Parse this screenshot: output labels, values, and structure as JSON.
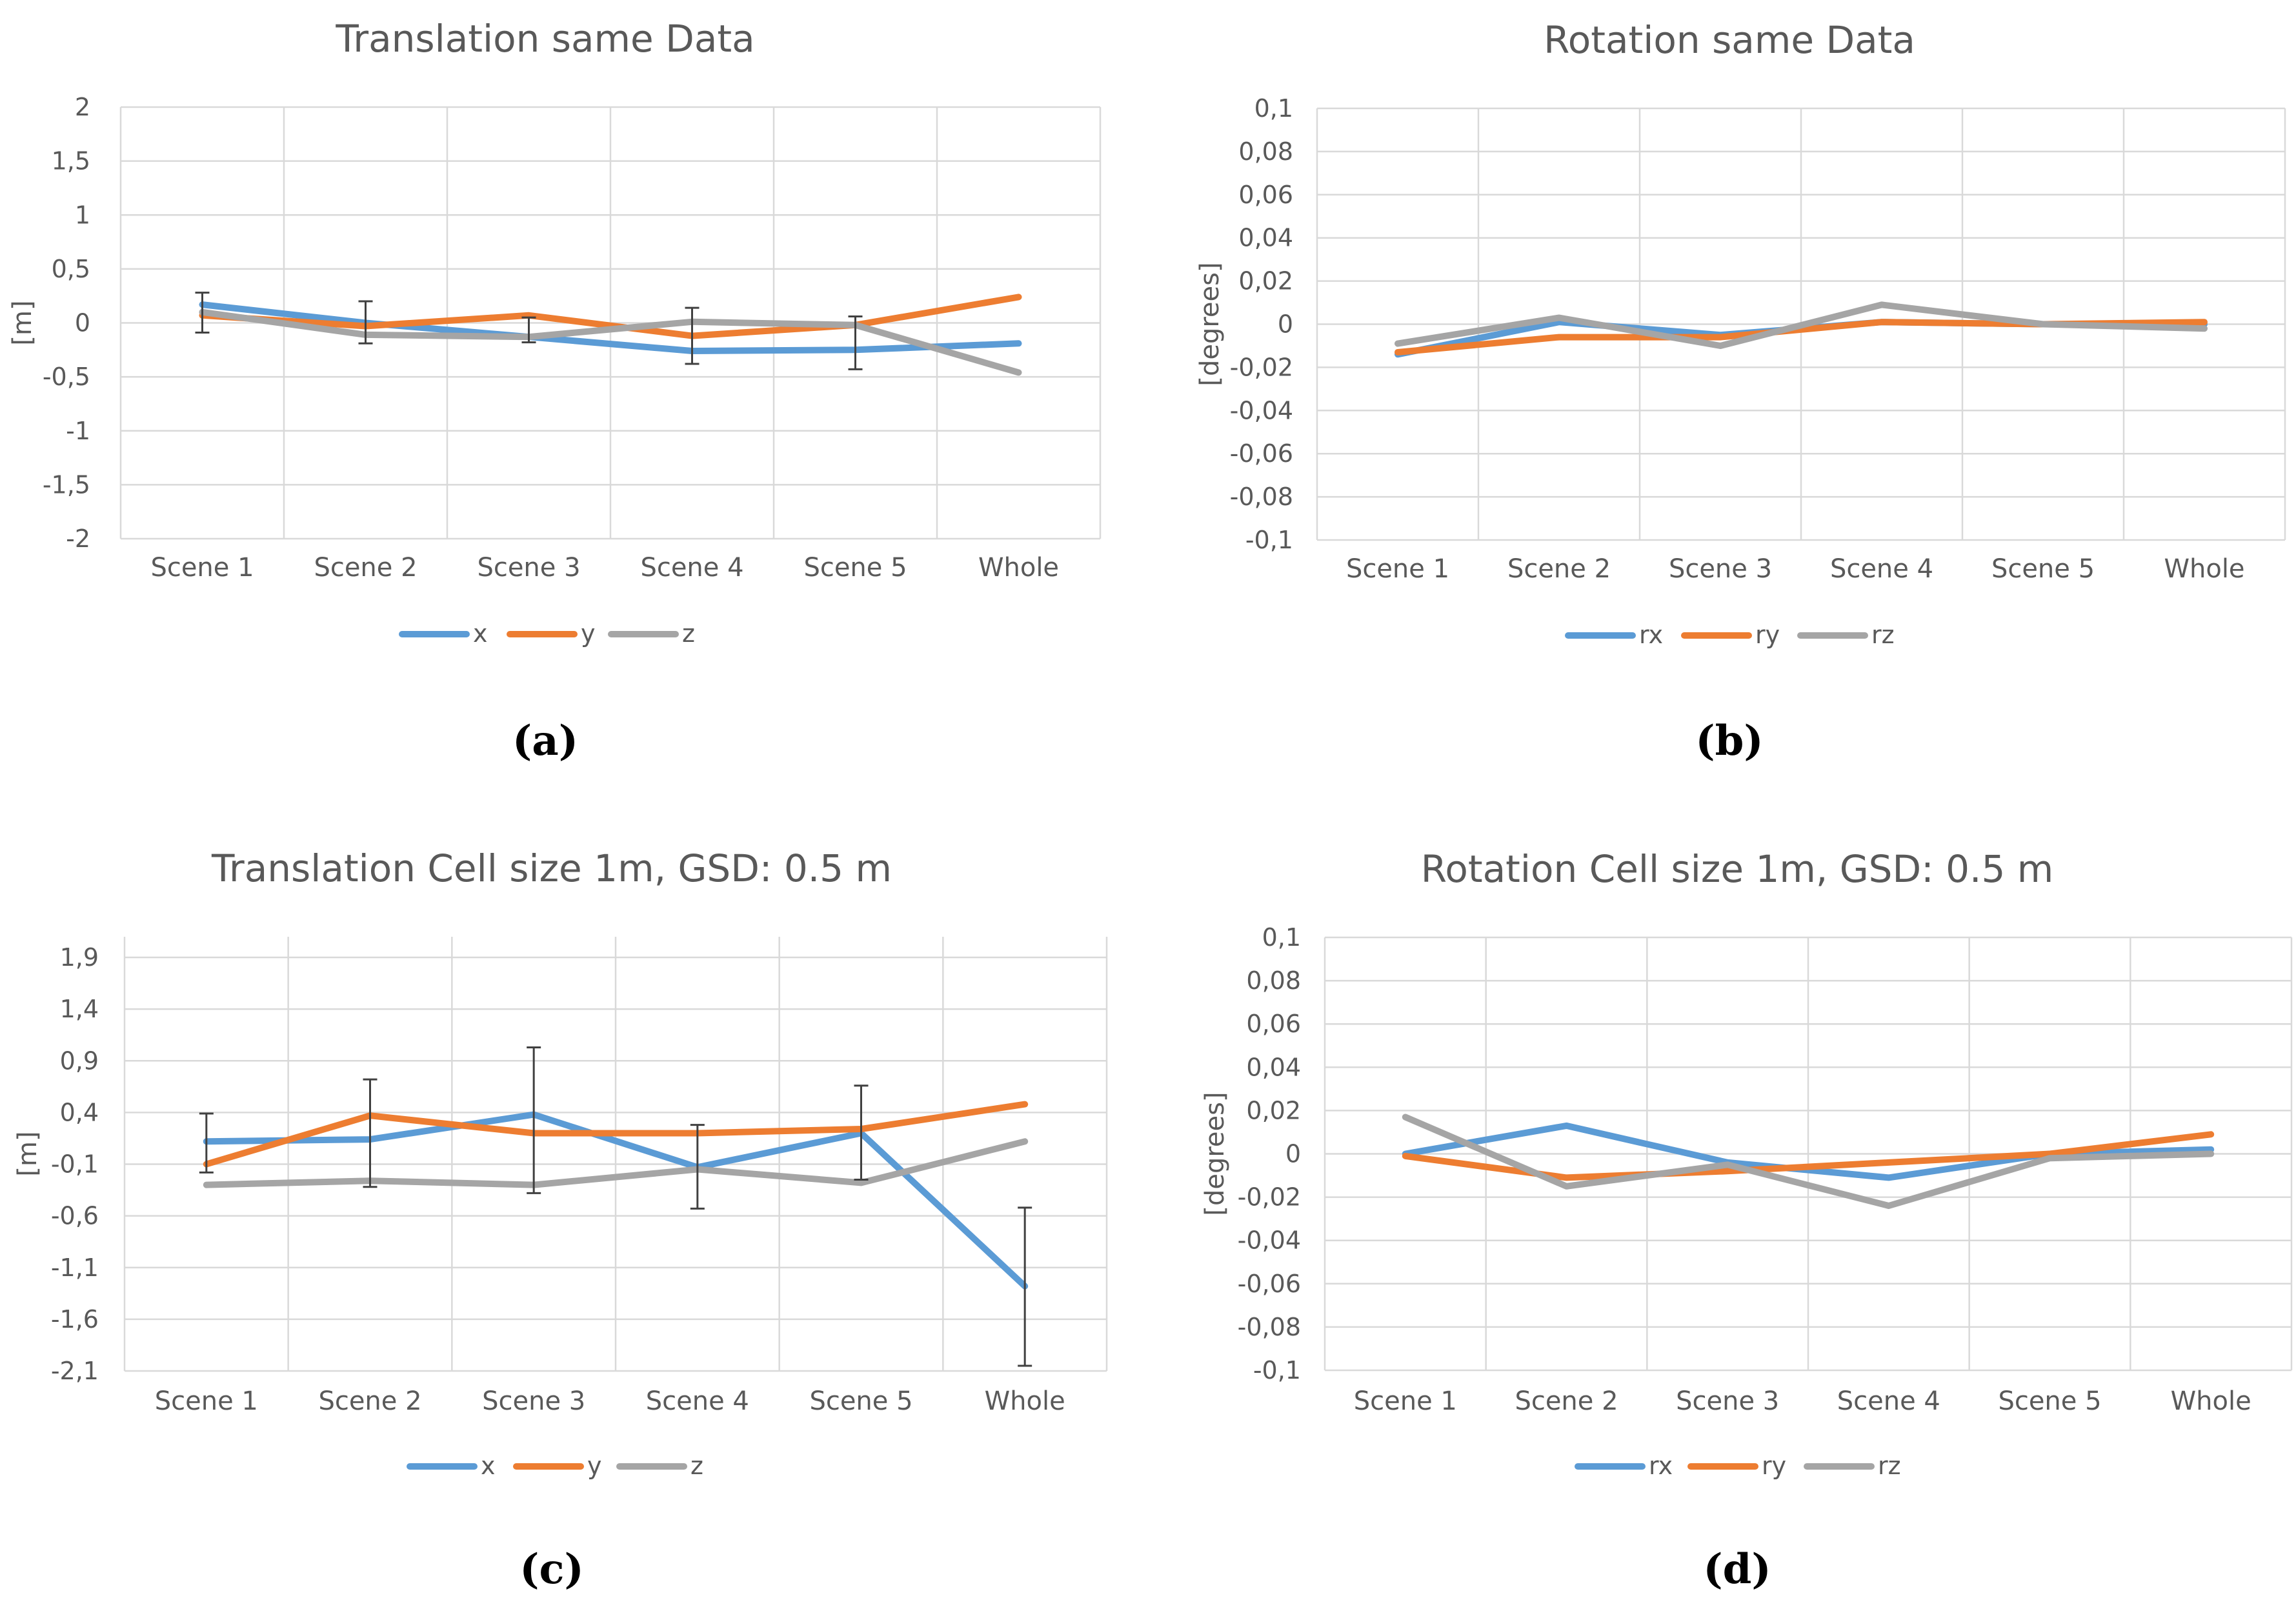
{
  "colors": {
    "x": "#5B9BD5",
    "y": "#ED7D31",
    "z": "#A5A5A5",
    "grid": "#D9D9D9",
    "text": "#595959",
    "errorbar": "#404040"
  },
  "chart_data": [
    {
      "type": "line",
      "title": "Translation same Data",
      "caption": "(a)",
      "xlabel": "",
      "ylabel": "[m]",
      "categories": [
        "Scene 1",
        "Scene 2",
        "Scene 3",
        "Scene 4",
        "Scene 5",
        "Whole"
      ],
      "ylim": [
        -2,
        2
      ],
      "yticks": [
        2,
        1.5,
        1,
        0.5,
        0,
        -0.5,
        -1,
        -1.5,
        -2
      ],
      "ytick_labels": [
        "2",
        "1,5",
        "1",
        "0,5",
        "0",
        "-0,5",
        "-1",
        "-1,5",
        "-2"
      ],
      "series": [
        {
          "name": "x",
          "values": [
            0.17,
            0.0,
            -0.13,
            -0.26,
            -0.25,
            -0.19
          ]
        },
        {
          "name": "y",
          "values": [
            0.07,
            -0.03,
            0.07,
            -0.12,
            -0.02,
            0.24
          ]
        },
        {
          "name": "z",
          "values": [
            0.1,
            -0.11,
            -0.13,
            0.01,
            -0.02,
            -0.46
          ]
        }
      ],
      "error_bars": [
        {
          "category": "Scene 1",
          "low": -0.09,
          "high": 0.28
        },
        {
          "category": "Scene 2",
          "low": -0.19,
          "high": 0.2
        },
        {
          "category": "Scene 3",
          "low": -0.18,
          "high": 0.05
        },
        {
          "category": "Scene 4",
          "low": -0.38,
          "high": 0.14
        },
        {
          "category": "Scene 5",
          "low": -0.43,
          "high": 0.06
        }
      ]
    },
    {
      "type": "line",
      "title": "Rotation same Data",
      "caption": "(b)",
      "xlabel": "",
      "ylabel": "[degrees]",
      "categories": [
        "Scene 1",
        "Scene 2",
        "Scene 3",
        "Scene 4",
        "Scene 5",
        "Whole"
      ],
      "ylim": [
        -0.1,
        0.1
      ],
      "yticks": [
        0.1,
        0.08,
        0.06,
        0.04,
        0.02,
        0,
        -0.02,
        -0.04,
        -0.06,
        -0.08,
        -0.1
      ],
      "ytick_labels": [
        "0,1",
        "0,08",
        "0,06",
        "0,04",
        "0,02",
        "0",
        "-0,02",
        "-0,04",
        "-0,06",
        "-0,08",
        "-0,1"
      ],
      "series": [
        {
          "name": "rx",
          "values": [
            -0.014,
            0.001,
            -0.005,
            0.001,
            0.0,
            0.0
          ]
        },
        {
          "name": "ry",
          "values": [
            -0.013,
            -0.006,
            -0.006,
            0.001,
            0.0,
            0.001
          ]
        },
        {
          "name": "rz",
          "values": [
            -0.009,
            0.003,
            -0.01,
            0.009,
            0.0,
            -0.002
          ]
        }
      ],
      "error_bars": []
    },
    {
      "type": "line",
      "title": "Translation Cell size 1m, GSD: 0.5 m",
      "caption": "(c)",
      "xlabel": "",
      "ylabel": "[m]",
      "categories": [
        "Scene 1",
        "Scene 2",
        "Scene 3",
        "Scene 4",
        "Scene 5",
        "Whole"
      ],
      "ylim": [
        -2.1,
        2.1
      ],
      "yticks": [
        1.9,
        1.4,
        0.9,
        0.4,
        -0.1,
        -0.6,
        -1.1,
        -1.6,
        -2.1
      ],
      "ytick_labels": [
        "1,9",
        "1,4",
        "0,9",
        "0,4",
        "-0,1",
        "-0,6",
        "-1,1",
        "-1,6",
        "-2,1"
      ],
      "series": [
        {
          "name": "x",
          "values": [
            0.12,
            0.14,
            0.38,
            -0.13,
            0.2,
            -1.28
          ]
        },
        {
          "name": "y",
          "values": [
            -0.1,
            0.37,
            0.2,
            0.2,
            0.24,
            0.48
          ]
        },
        {
          "name": "z",
          "values": [
            -0.3,
            -0.26,
            -0.3,
            -0.15,
            -0.28,
            0.12
          ]
        }
      ],
      "error_bars": [
        {
          "category": "Scene 1",
          "low": -0.18,
          "high": 0.39
        },
        {
          "category": "Scene 2",
          "low": -0.32,
          "high": 0.72
        },
        {
          "category": "Scene 3",
          "low": -0.38,
          "high": 1.03
        },
        {
          "category": "Scene 4",
          "low": -0.53,
          "high": 0.28
        },
        {
          "category": "Scene 5",
          "low": -0.25,
          "high": 0.66
        },
        {
          "category": "Whole",
          "low": -2.05,
          "high": -0.52
        }
      ]
    },
    {
      "type": "line",
      "title": "Rotation Cell size 1m, GSD: 0.5 m",
      "caption": "(d)",
      "xlabel": "",
      "ylabel": "[degrees]",
      "categories": [
        "Scene 1",
        "Scene 2",
        "Scene 3",
        "Scene 4",
        "Scene 5",
        "Whole"
      ],
      "ylim": [
        -0.1,
        0.1
      ],
      "yticks": [
        0.1,
        0.08,
        0.06,
        0.04,
        0.02,
        0,
        -0.02,
        -0.04,
        -0.06,
        -0.08,
        -0.1
      ],
      "ytick_labels": [
        "0,1",
        "0,08",
        "0,06",
        "0,04",
        "0,02",
        "0",
        "-0,02",
        "-0,04",
        "-0,06",
        "-0,08",
        "-0,1"
      ],
      "series": [
        {
          "name": "rx",
          "values": [
            0.0,
            0.013,
            -0.004,
            -0.011,
            0.0,
            0.002
          ]
        },
        {
          "name": "ry",
          "values": [
            -0.001,
            -0.011,
            -0.008,
            -0.004,
            0.0,
            0.009
          ]
        },
        {
          "name": "rz",
          "values": [
            0.017,
            -0.015,
            -0.005,
            -0.024,
            -0.002,
            0.0
          ]
        }
      ],
      "error_bars": []
    }
  ]
}
